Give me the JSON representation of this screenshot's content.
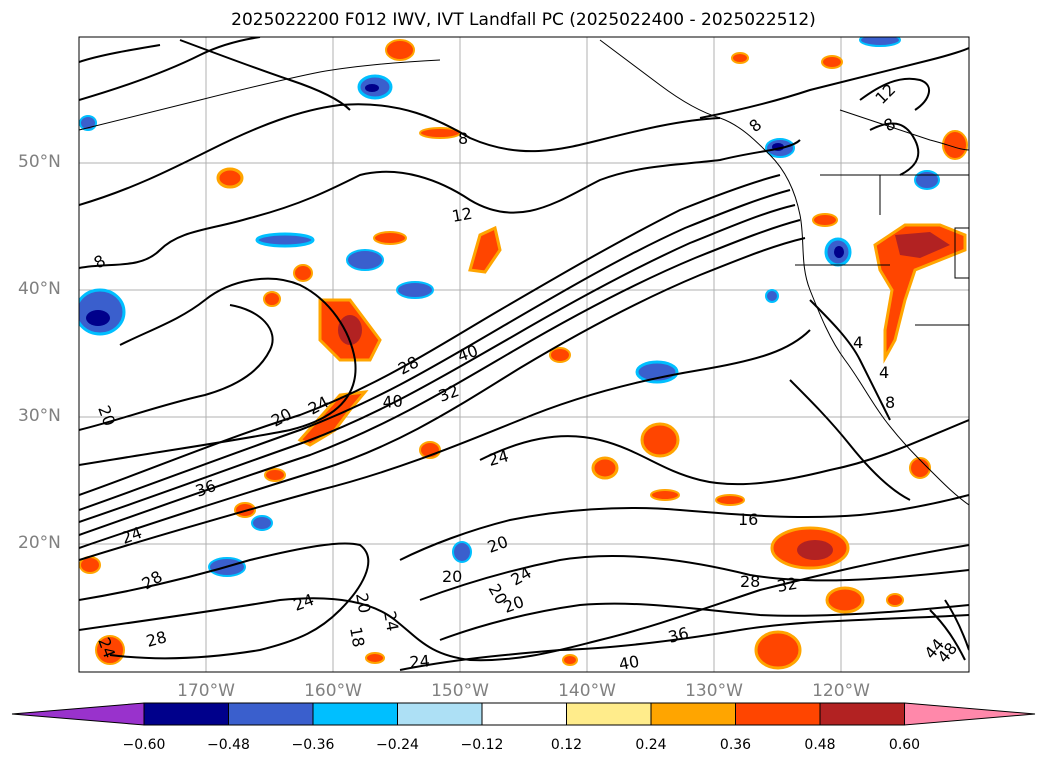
{
  "title": "2025022200 F012 IWV, IVT Landfall PC (2025022400 - 2025022512)",
  "map": {
    "lat_ticks": [
      "50°N",
      "40°N",
      "30°N",
      "20°N"
    ],
    "lon_ticks": [
      "170°W",
      "160°W",
      "150°W",
      "140°W",
      "130°W",
      "120°W"
    ],
    "contour_labels": [
      "8",
      "8",
      "8",
      "12",
      "12",
      "8",
      "20",
      "20",
      "24",
      "28",
      "40",
      "40",
      "32",
      "36",
      "24",
      "16",
      "28",
      "32",
      "24",
      "24",
      "20",
      "20",
      "20",
      "24",
      "20",
      "28",
      "24",
      "28",
      "24",
      "18",
      "20",
      "24",
      "36",
      "40",
      "44",
      "48",
      "4",
      "4",
      "8"
    ]
  },
  "colorbar": {
    "tick_labels": [
      "−0.60",
      "−0.48",
      "−0.36",
      "−0.24",
      "−0.12",
      "0.12",
      "0.24",
      "0.36",
      "0.48",
      "0.60"
    ],
    "colors": [
      "#9932CC",
      "#00008B",
      "#3A5FCD",
      "#00BFFF",
      "#ADE0F5",
      "#FFFFFF",
      "#FFEC8B",
      "#FFA500",
      "#FF4500",
      "#B22222",
      "#FF88AA"
    ]
  }
}
